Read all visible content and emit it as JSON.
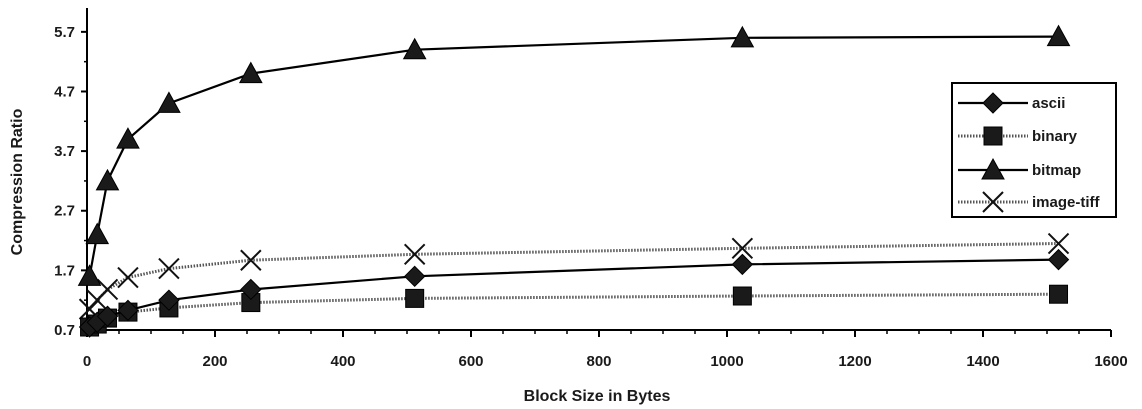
{
  "chart_data": {
    "type": "line",
    "title": "",
    "xlabel": "Block Size in Bytes",
    "ylabel": "Compression Ratio",
    "xlim": [
      0,
      1600
    ],
    "ylim": [
      0.7,
      6.1
    ],
    "x_ticks": [
      0,
      200,
      400,
      600,
      800,
      1000,
      1200,
      1400,
      1600
    ],
    "y_ticks": [
      0.7,
      1.7,
      2.7,
      3.7,
      4.7,
      5.7
    ],
    "grid": false,
    "legend_position": "right",
    "series": [
      {
        "name": "ascii",
        "marker": "diamond",
        "line": "solid",
        "x": [
          4,
          16,
          32,
          64,
          128,
          256,
          512,
          1024,
          1518
        ],
        "y": [
          0.75,
          0.83,
          0.93,
          1.03,
          1.2,
          1.38,
          1.6,
          1.8,
          1.88
        ]
      },
      {
        "name": "binary",
        "marker": "square",
        "line": "dotted",
        "x": [
          4,
          16,
          32,
          64,
          128,
          256,
          512,
          1024,
          1518
        ],
        "y": [
          0.75,
          0.8,
          0.9,
          1.0,
          1.07,
          1.16,
          1.23,
          1.27,
          1.3
        ]
      },
      {
        "name": "bitmap",
        "marker": "triangle",
        "line": "solid",
        "x": [
          4,
          16,
          32,
          64,
          128,
          256,
          512,
          1024,
          1518
        ],
        "y": [
          1.6,
          2.3,
          3.2,
          3.9,
          4.5,
          5.0,
          5.4,
          5.6,
          5.62
        ]
      },
      {
        "name": "image-tiff",
        "marker": "x",
        "line": "dotted",
        "x": [
          4,
          16,
          32,
          64,
          128,
          256,
          512,
          1024,
          1518
        ],
        "y": [
          1.05,
          1.2,
          1.38,
          1.58,
          1.73,
          1.87,
          1.97,
          2.07,
          2.15
        ]
      }
    ]
  }
}
